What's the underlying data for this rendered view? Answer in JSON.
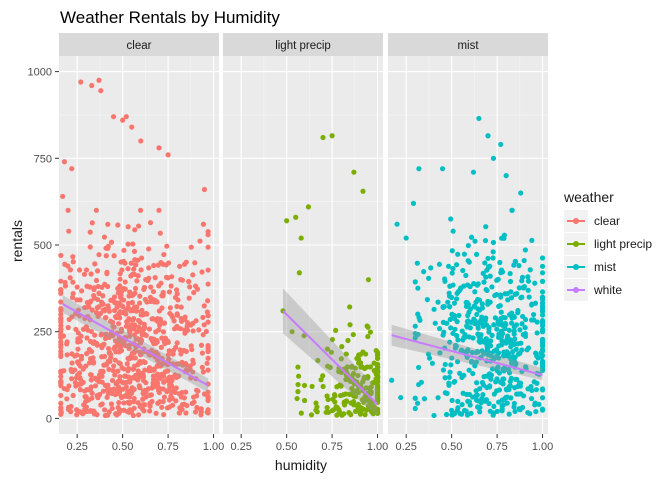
{
  "chart_data": {
    "type": "scatter",
    "title": "Weather Rentals by Humidity",
    "xlabel": "humidity",
    "ylabel": "rentals",
    "xlim": [
      0.15,
      1.03
    ],
    "ylim": [
      -45,
      1045
    ],
    "x_ticks": [
      0.25,
      0.5,
      0.75,
      1.0
    ],
    "x_tick_labels": [
      "0.25",
      "0.50",
      "0.75",
      "1.00"
    ],
    "y_ticks": [
      0,
      250,
      500,
      750,
      1000
    ],
    "y_tick_labels": [
      "0",
      "250",
      "500",
      "750",
      "1000"
    ],
    "grid": true,
    "legend_placement": "right",
    "legend": {
      "title": "weather",
      "entries": [
        {
          "label": "clear",
          "color": "#F8766D"
        },
        {
          "label": "light precip",
          "color": "#7CAE00"
        },
        {
          "label": "mist",
          "color": "#00BFC4"
        },
        {
          "label": "white",
          "color": "#C77CFF"
        }
      ]
    },
    "fit_color": "#C77CFF",
    "panels": [
      {
        "strip": "clear",
        "color": "#F8766D",
        "fit": [
          [
            0.17,
            330
          ],
          [
            0.97,
            95
          ]
        ],
        "ci": {
          "x": [
            0.17,
            0.97
          ],
          "lower": [
            305,
            75
          ],
          "upper": [
            355,
            115
          ]
        },
        "highlights": [
          [
            0.27,
            970
          ],
          [
            0.33,
            960
          ],
          [
            0.38,
            945
          ],
          [
            0.37,
            975
          ],
          [
            0.45,
            870
          ],
          [
            0.5,
            860
          ],
          [
            0.52,
            870
          ],
          [
            0.55,
            840
          ],
          [
            0.6,
            800
          ],
          [
            0.7,
            780
          ],
          [
            0.75,
            760
          ],
          [
            0.18,
            740
          ],
          [
            0.22,
            720
          ],
          [
            0.95,
            660
          ],
          [
            0.17,
            640
          ],
          [
            0.2,
            600
          ]
        ],
        "cluster": {
          "n": 900,
          "x_range": [
            0.16,
            0.97
          ],
          "x_peak": 0.55,
          "y_center": 210,
          "y_spread": 230,
          "seed": 11
        }
      },
      {
        "strip": "light precip",
        "color": "#7CAE00",
        "fit": [
          [
            0.48,
            310
          ],
          [
            1.0,
            40
          ]
        ],
        "ci": {
          "x": [
            0.48,
            1.0
          ],
          "lower": [
            245,
            5
          ],
          "upper": [
            375,
            85
          ]
        },
        "highlights": [
          [
            0.7,
            810
          ],
          [
            0.75,
            815
          ],
          [
            0.87,
            710
          ],
          [
            0.92,
            655
          ],
          [
            0.5,
            570
          ],
          [
            0.55,
            580
          ],
          [
            0.62,
            610
          ],
          [
            0.58,
            520
          ],
          [
            0.48,
            310
          ],
          [
            0.53,
            250
          ],
          [
            0.95,
            400
          ],
          [
            0.57,
            420
          ]
        ],
        "cluster": {
          "n": 230,
          "x_range": [
            0.52,
            1.0
          ],
          "x_peak": 0.9,
          "y_center": 80,
          "y_spread": 110,
          "seed": 23
        }
      },
      {
        "strip": "mist",
        "color": "#00BFC4",
        "fit": [
          [
            0.17,
            240
          ],
          [
            1.0,
            125
          ]
        ],
        "ci": {
          "x": [
            0.17,
            1.0
          ],
          "lower": [
            210,
            110
          ],
          "upper": [
            270,
            145
          ]
        },
        "highlights": [
          [
            0.65,
            865
          ],
          [
            0.7,
            815
          ],
          [
            0.77,
            790
          ],
          [
            0.32,
            720
          ],
          [
            0.45,
            720
          ],
          [
            0.62,
            710
          ],
          [
            0.73,
            750
          ],
          [
            0.8,
            700
          ],
          [
            0.29,
            620
          ],
          [
            0.88,
            650
          ],
          [
            0.2,
            560
          ],
          [
            0.25,
            520
          ],
          [
            0.17,
            110
          ],
          [
            0.22,
            60
          ]
        ],
        "cluster": {
          "n": 560,
          "x_range": [
            0.3,
            1.0
          ],
          "x_peak": 0.72,
          "y_center": 220,
          "y_spread": 200,
          "seed": 37
        }
      }
    ]
  }
}
